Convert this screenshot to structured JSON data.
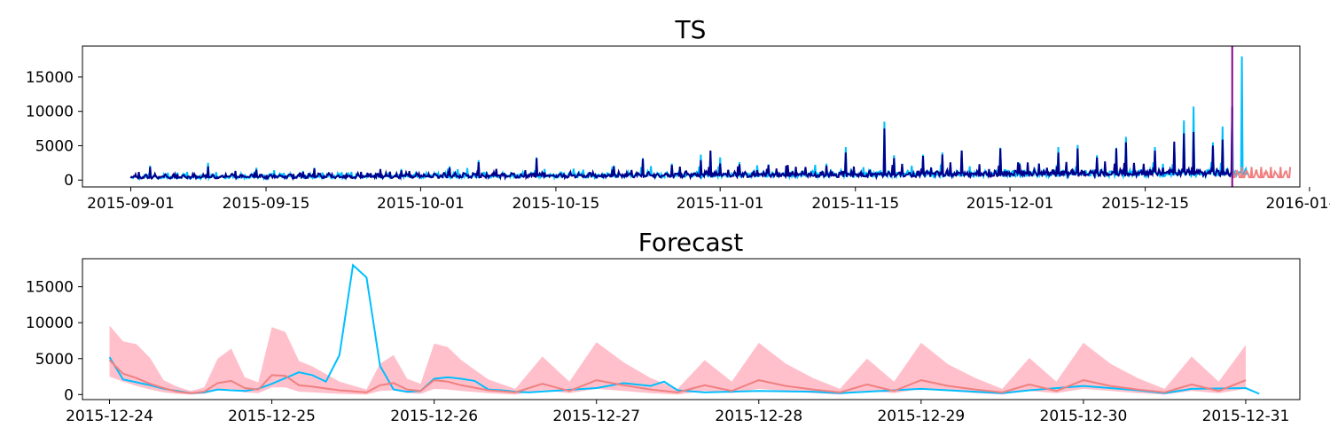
{
  "colors": {
    "observed": "#00BFFF",
    "fitted": "#00008B",
    "forecast": "#F08080",
    "interval": "#FFC0CB",
    "forecast_start": "#8B008B"
  },
  "chart_data": [
    {
      "type": "line",
      "title": "TS",
      "x_range": [
        "2015-08-27",
        "2015-12-31"
      ],
      "ylim": [
        -1000,
        19500
      ],
      "y_ticks": [
        0,
        5000,
        10000,
        15000
      ],
      "x_ticks": [
        "2015-09-01",
        "2015-09-15",
        "2015-10-01",
        "2015-10-15",
        "2015-11-01",
        "2015-11-15",
        "2015-12-01",
        "2015-12-15",
        "2016-01-01"
      ],
      "forecast_start": "2015-12-24",
      "grid": false,
      "spikes": {
        "observed": [
          [
            "2015-09-03",
            2100
          ],
          [
            "2015-09-09",
            2500
          ],
          [
            "2015-09-14",
            1800
          ],
          [
            "2015-09-20",
            1800
          ],
          [
            "2015-09-29",
            1600
          ],
          [
            "2015-10-04",
            2000
          ],
          [
            "2015-10-07",
            2900
          ],
          [
            "2015-10-13",
            3300
          ],
          [
            "2015-10-21",
            2100
          ],
          [
            "2015-10-24",
            3200
          ],
          [
            "2015-10-27",
            2400
          ],
          [
            "2015-10-30",
            3700
          ],
          [
            "2015-10-31",
            4200
          ],
          [
            "2015-11-01",
            3300
          ],
          [
            "2015-11-03",
            2600
          ],
          [
            "2015-11-06",
            2300
          ],
          [
            "2015-11-08",
            1900
          ],
          [
            "2015-11-12",
            2400
          ],
          [
            "2015-11-14",
            4800
          ],
          [
            "2015-11-18",
            8500
          ],
          [
            "2015-11-19",
            3600
          ],
          [
            "2015-11-22",
            3700
          ],
          [
            "2015-11-24",
            4000
          ],
          [
            "2015-11-26",
            4300
          ],
          [
            "2015-11-30",
            4700
          ],
          [
            "2015-12-02",
            2500
          ],
          [
            "2015-12-04",
            2300
          ],
          [
            "2015-12-06",
            4800
          ],
          [
            "2015-12-08",
            5100
          ],
          [
            "2015-12-10",
            3600
          ],
          [
            "2015-12-12",
            4700
          ],
          [
            "2015-12-13",
            6300
          ],
          [
            "2015-12-16",
            4800
          ],
          [
            "2015-12-18",
            5300
          ],
          [
            "2015-12-19",
            8700
          ],
          [
            "2015-12-20",
            10700
          ],
          [
            "2015-12-22",
            5500
          ],
          [
            "2015-12-23",
            7800
          ],
          [
            "2015-12-24",
            10800
          ],
          [
            "2015-12-25",
            18000
          ]
        ],
        "fitted": [
          [
            "2015-09-03",
            1900
          ],
          [
            "2015-09-09",
            2000
          ],
          [
            "2015-09-14",
            1500
          ],
          [
            "2015-09-20",
            1700
          ],
          [
            "2015-09-29",
            1400
          ],
          [
            "2015-10-04",
            1800
          ],
          [
            "2015-10-07",
            2600
          ],
          [
            "2015-10-13",
            3200
          ],
          [
            "2015-10-21",
            2000
          ],
          [
            "2015-10-24",
            3100
          ],
          [
            "2015-10-27",
            2200
          ],
          [
            "2015-10-30",
            2900
          ],
          [
            "2015-10-31",
            4300
          ],
          [
            "2015-11-01",
            2400
          ],
          [
            "2015-11-03",
            2300
          ],
          [
            "2015-11-06",
            2200
          ],
          [
            "2015-11-08",
            2200
          ],
          [
            "2015-11-12",
            2100
          ],
          [
            "2015-11-14",
            4000
          ],
          [
            "2015-11-18",
            7500
          ],
          [
            "2015-11-19",
            3200
          ],
          [
            "2015-11-22",
            3500
          ],
          [
            "2015-11-24",
            3700
          ],
          [
            "2015-11-26",
            4300
          ],
          [
            "2015-11-30",
            4600
          ],
          [
            "2015-12-02",
            2300
          ],
          [
            "2015-12-04",
            2400
          ],
          [
            "2015-12-06",
            4000
          ],
          [
            "2015-12-08",
            4600
          ],
          [
            "2015-12-10",
            3300
          ],
          [
            "2015-12-12",
            4600
          ],
          [
            "2015-12-13",
            5500
          ],
          [
            "2015-12-16",
            4300
          ],
          [
            "2015-12-18",
            5600
          ],
          [
            "2015-12-19",
            6800
          ],
          [
            "2015-12-20",
            7000
          ],
          [
            "2015-12-22",
            5000
          ],
          [
            "2015-12-23",
            5900
          ],
          [
            "2015-12-24",
            10500
          ]
        ]
      }
    },
    {
      "type": "line",
      "title": "Forecast",
      "x_range": [
        "2015-12-23T20:00",
        "2015-12-31T08:00"
      ],
      "ylim": [
        -700,
        18900
      ],
      "y_ticks": [
        0,
        5000,
        10000,
        15000
      ],
      "x_ticks": [
        "2015-12-24",
        "2015-12-25",
        "2015-12-26",
        "2015-12-27",
        "2015-12-28",
        "2015-12-29",
        "2015-12-30",
        "2015-12-31"
      ],
      "grid": false,
      "series": [
        {
          "key": "actual",
          "color": "#00BFFF",
          "points": [
            [
              "2015-12-24T00:00",
              5200
            ],
            [
              "2015-12-24T02:00",
              2100
            ],
            [
              "2015-12-24T04:00",
              1700
            ],
            [
              "2015-12-24T06:00",
              1300
            ],
            [
              "2015-12-24T08:00",
              800
            ],
            [
              "2015-12-24T10:00",
              500
            ],
            [
              "2015-12-24T12:00",
              200
            ],
            [
              "2015-12-24T14:00",
              300
            ],
            [
              "2015-12-24T16:00",
              700
            ],
            [
              "2015-12-24T18:00",
              600
            ],
            [
              "2015-12-24T20:00",
              500
            ],
            [
              "2015-12-24T22:00",
              800
            ],
            [
              "2015-12-25T00:00",
              1500
            ],
            [
              "2015-12-25T02:00",
              2300
            ],
            [
              "2015-12-25T04:00",
              3100
            ],
            [
              "2015-12-25T06:00",
              2700
            ],
            [
              "2015-12-25T08:00",
              1800
            ],
            [
              "2015-12-25T10:00",
              5500
            ],
            [
              "2015-12-25T12:00",
              18000
            ],
            [
              "2015-12-25T14:00",
              16300
            ],
            [
              "2015-12-25T16:00",
              4000
            ],
            [
              "2015-12-25T18:00",
              700
            ],
            [
              "2015-12-25T20:00",
              400
            ],
            [
              "2015-12-25T22:00",
              500
            ],
            [
              "2015-12-26T00:00",
              2200
            ],
            [
              "2015-12-26T02:00",
              2400
            ],
            [
              "2015-12-26T04:00",
              2200
            ],
            [
              "2015-12-26T06:00",
              1900
            ],
            [
              "2015-12-26T08:00",
              700
            ],
            [
              "2015-12-26T10:00",
              600
            ],
            [
              "2015-12-26T12:00",
              400
            ],
            [
              "2015-12-26T14:00",
              300
            ],
            [
              "2015-12-27T00:00",
              900
            ],
            [
              "2015-12-27T04:00",
              1600
            ],
            [
              "2015-12-27T08:00",
              1200
            ],
            [
              "2015-12-27T10:00",
              1800
            ],
            [
              "2015-12-27T12:00",
              600
            ],
            [
              "2015-12-27T16:00",
              300
            ],
            [
              "2015-12-28T00:00",
              500
            ],
            [
              "2015-12-28T08:00",
              400
            ],
            [
              "2015-12-28T12:00",
              200
            ],
            [
              "2015-12-28T16:00",
              400
            ],
            [
              "2015-12-29T00:00",
              800
            ],
            [
              "2015-12-29T08:00",
              400
            ],
            [
              "2015-12-29T12:00",
              200
            ],
            [
              "2015-12-29T16:00",
              600
            ],
            [
              "2015-12-30T00:00",
              1200
            ],
            [
              "2015-12-30T08:00",
              600
            ],
            [
              "2015-12-30T12:00",
              200
            ],
            [
              "2015-12-30T16:00",
              800
            ],
            [
              "2015-12-31T00:00",
              900
            ],
            [
              "2015-12-31T02:00",
              100
            ]
          ]
        },
        {
          "key": "forecast",
          "color": "#F08080",
          "points": [
            [
              "2015-12-24T00:00",
              4800
            ],
            [
              "2015-12-24T02:00",
              2900
            ],
            [
              "2015-12-24T04:00",
              2300
            ],
            [
              "2015-12-24T06:00",
              1500
            ],
            [
              "2015-12-24T08:00",
              900
            ],
            [
              "2015-12-24T10:00",
              400
            ],
            [
              "2015-12-24T12:00",
              200
            ],
            [
              "2015-12-24T14:00",
              400
            ],
            [
              "2015-12-24T16:00",
              1600
            ],
            [
              "2015-12-24T18:00",
              1900
            ],
            [
              "2015-12-24T20:00",
              900
            ],
            [
              "2015-12-24T22:00",
              700
            ],
            [
              "2015-12-25T00:00",
              2700
            ],
            [
              "2015-12-25T02:00",
              2600
            ],
            [
              "2015-12-25T04:00",
              1300
            ],
            [
              "2015-12-25T06:00",
              1100
            ],
            [
              "2015-12-25T10:00",
              600
            ],
            [
              "2015-12-25T14:00",
              300
            ],
            [
              "2015-12-25T16:00",
              1300
            ],
            [
              "2015-12-25T18:00",
              1600
            ],
            [
              "2015-12-25T20:00",
              700
            ],
            [
              "2015-12-25T22:00",
              500
            ],
            [
              "2015-12-26T00:00",
              2000
            ],
            [
              "2015-12-26T02:00",
              1800
            ],
            [
              "2015-12-26T04:00",
              1300
            ],
            [
              "2015-12-26T08:00",
              600
            ],
            [
              "2015-12-26T12:00",
              300
            ],
            [
              "2015-12-26T16:00",
              1500
            ],
            [
              "2015-12-26T20:00",
              500
            ],
            [
              "2015-12-27T00:00",
              2000
            ],
            [
              "2015-12-27T04:00",
              1300
            ],
            [
              "2015-12-27T08:00",
              700
            ],
            [
              "2015-12-27T12:00",
              300
            ],
            [
              "2015-12-27T16:00",
              1300
            ],
            [
              "2015-12-27T20:00",
              500
            ],
            [
              "2015-12-28T00:00",
              2000
            ],
            [
              "2015-12-28T04:00",
              1200
            ],
            [
              "2015-12-28T08:00",
              700
            ],
            [
              "2015-12-28T12:00",
              300
            ],
            [
              "2015-12-28T16:00",
              1400
            ],
            [
              "2015-12-28T20:00",
              500
            ],
            [
              "2015-12-29T00:00",
              2000
            ],
            [
              "2015-12-29T04:00",
              1200
            ],
            [
              "2015-12-29T08:00",
              700
            ],
            [
              "2015-12-29T12:00",
              300
            ],
            [
              "2015-12-29T16:00",
              1400
            ],
            [
              "2015-12-29T20:00",
              500
            ],
            [
              "2015-12-30T00:00",
              2000
            ],
            [
              "2015-12-30T04:00",
              1200
            ],
            [
              "2015-12-30T08:00",
              700
            ],
            [
              "2015-12-30T12:00",
              300
            ],
            [
              "2015-12-30T16:00",
              1400
            ],
            [
              "2015-12-30T20:00",
              500
            ],
            [
              "2015-12-31T00:00",
              2000
            ]
          ]
        }
      ],
      "interval": [
        [
          "2015-12-24T00:00",
          2500,
          9600
        ],
        [
          "2015-12-24T02:00",
          1800,
          7400
        ],
        [
          "2015-12-24T04:00",
          1200,
          7000
        ],
        [
          "2015-12-24T06:00",
          700,
          5100
        ],
        [
          "2015-12-24T08:00",
          300,
          2000
        ],
        [
          "2015-12-24T10:00",
          100,
          1100
        ],
        [
          "2015-12-24T12:00",
          0,
          500
        ],
        [
          "2015-12-24T14:00",
          100,
          1000
        ],
        [
          "2015-12-24T16:00",
          600,
          5000
        ],
        [
          "2015-12-24T18:00",
          800,
          6400
        ],
        [
          "2015-12-24T20:00",
          300,
          2400
        ],
        [
          "2015-12-24T22:00",
          200,
          1700
        ],
        [
          "2015-12-25T00:00",
          1000,
          9400
        ],
        [
          "2015-12-25T02:00",
          1000,
          8700
        ],
        [
          "2015-12-25T04:00",
          400,
          4700
        ],
        [
          "2015-12-25T06:00",
          300,
          3900
        ],
        [
          "2015-12-25T10:00",
          100,
          1800
        ],
        [
          "2015-12-25T14:00",
          0,
          700
        ],
        [
          "2015-12-25T16:00",
          500,
          4300
        ],
        [
          "2015-12-25T18:00",
          600,
          5500
        ],
        [
          "2015-12-25T20:00",
          200,
          2200
        ],
        [
          "2015-12-25T22:00",
          100,
          1500
        ],
        [
          "2015-12-26T00:00",
          800,
          7100
        ],
        [
          "2015-12-26T02:00",
          700,
          6600
        ],
        [
          "2015-12-26T04:00",
          500,
          4800
        ],
        [
          "2015-12-26T08:00",
          200,
          2100
        ],
        [
          "2015-12-26T12:00",
          0,
          800
        ],
        [
          "2015-12-26T16:00",
          600,
          5300
        ],
        [
          "2015-12-26T20:00",
          200,
          1800
        ],
        [
          "2015-12-27T00:00",
          800,
          7300
        ],
        [
          "2015-12-27T04:00",
          500,
          4500
        ],
        [
          "2015-12-27T08:00",
          200,
          2300
        ],
        [
          "2015-12-27T12:00",
          0,
          800
        ],
        [
          "2015-12-27T16:00",
          500,
          4800
        ],
        [
          "2015-12-27T20:00",
          200,
          1800
        ],
        [
          "2015-12-28T00:00",
          800,
          7200
        ],
        [
          "2015-12-28T04:00",
          500,
          4300
        ],
        [
          "2015-12-28T08:00",
          200,
          2300
        ],
        [
          "2015-12-28T12:00",
          0,
          800
        ],
        [
          "2015-12-28T16:00",
          500,
          5000
        ],
        [
          "2015-12-28T20:00",
          200,
          1800
        ],
        [
          "2015-12-29T00:00",
          800,
          7200
        ],
        [
          "2015-12-29T04:00",
          500,
          4200
        ],
        [
          "2015-12-29T08:00",
          200,
          2300
        ],
        [
          "2015-12-29T12:00",
          0,
          800
        ],
        [
          "2015-12-29T16:00",
          500,
          5100
        ],
        [
          "2015-12-29T20:00",
          200,
          1800
        ],
        [
          "2015-12-30T00:00",
          800,
          7200
        ],
        [
          "2015-12-30T04:00",
          500,
          4300
        ],
        [
          "2015-12-30T08:00",
          200,
          2300
        ],
        [
          "2015-12-30T12:00",
          0,
          800
        ],
        [
          "2015-12-30T16:00",
          500,
          5300
        ],
        [
          "2015-12-30T20:00",
          200,
          1800
        ],
        [
          "2015-12-31T00:00",
          800,
          6900
        ]
      ]
    }
  ]
}
